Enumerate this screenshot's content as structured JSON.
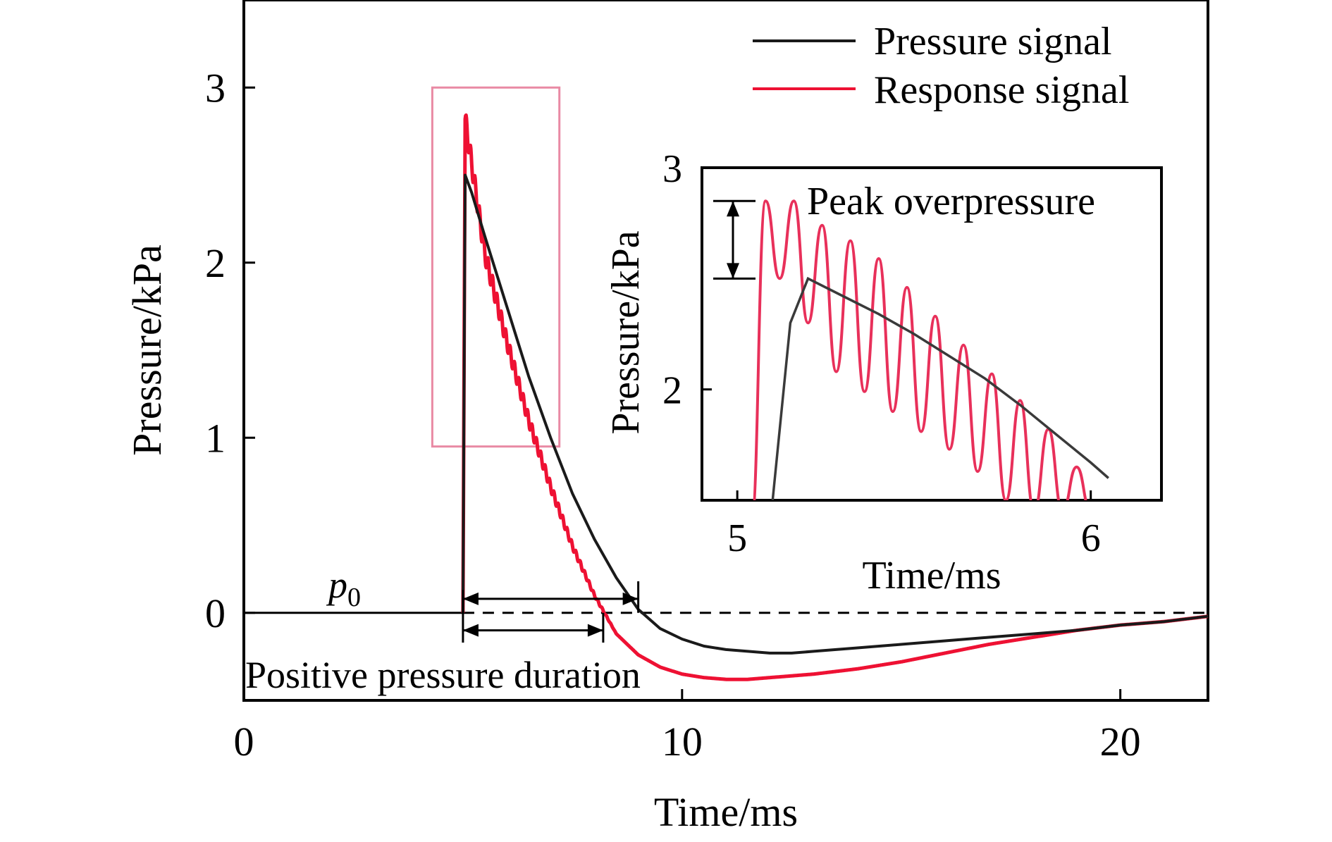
{
  "colors": {
    "pressure": "#1a1a1a",
    "response": "#ee1133",
    "inset_response": "#e8305a",
    "inset_pressure": "#3a3a3a",
    "highlight_box": "#e98aa4",
    "axis": "#000000"
  },
  "chart_data": [
    {
      "id": "main",
      "type": "line",
      "title": "",
      "xlabel": "Time/ms",
      "ylabel": "Pressure/kPa",
      "xlim": [
        0,
        22
      ],
      "ylim": [
        -0.5,
        3.5
      ],
      "xticks": [
        0,
        10,
        20
      ],
      "yticks": [
        0,
        1,
        2,
        3
      ],
      "grid": false,
      "legend": {
        "position": "top-right",
        "entries": [
          "Pressure signal",
          "Response signal"
        ]
      },
      "series": [
        {
          "name": "Pressure signal",
          "x": [
            0,
            5,
            5.05,
            5.2,
            5.5,
            6.0,
            6.5,
            7.0,
            7.5,
            8.0,
            8.5,
            9.0,
            9.5,
            10.0,
            10.5,
            11.0,
            11.5,
            12.0,
            12.5,
            13.0,
            14.0,
            15.0,
            16.0,
            17.0,
            18.0,
            19.0,
            20.0,
            21.0,
            22.0
          ],
          "y": [
            0,
            0,
            2.5,
            2.4,
            2.15,
            1.75,
            1.35,
            1.0,
            0.68,
            0.42,
            0.2,
            0.02,
            -0.09,
            -0.15,
            -0.19,
            -0.21,
            -0.22,
            -0.23,
            -0.23,
            -0.22,
            -0.2,
            -0.18,
            -0.16,
            -0.14,
            -0.12,
            -0.1,
            -0.07,
            -0.05,
            -0.02
          ]
        },
        {
          "name": "Response signal",
          "x": [
            5,
            5.05,
            5.5,
            6.0,
            6.5,
            7.0,
            7.5,
            8.0,
            8.5,
            9.0,
            9.5,
            10.0,
            10.5,
            11.0,
            11.5,
            12.0,
            13.0,
            14.0,
            15.0,
            16.0,
            17.0,
            18.0,
            19.0,
            20.0,
            21.0,
            22.0
          ],
          "y": [
            0,
            2.82,
            2.05,
            1.55,
            1.1,
            0.72,
            0.38,
            0.1,
            -0.12,
            -0.24,
            -0.31,
            -0.35,
            -0.37,
            -0.38,
            -0.38,
            -0.37,
            -0.35,
            -0.32,
            -0.28,
            -0.23,
            -0.18,
            -0.14,
            -0.1,
            -0.07,
            -0.05,
            -0.02
          ],
          "oscillation": {
            "amplitude": 0.06,
            "period_ms": 0.1,
            "decay_to_ms": 8.5
          }
        }
      ],
      "annotations": {
        "p0": {
          "text": "p",
          "subscript": "0",
          "x": 2.4,
          "y": 0.08
        },
        "duration_label": "Positive pressure duration",
        "pressure_duration": [
          5.0,
          9.0
        ],
        "response_duration": [
          5.0,
          8.2
        ],
        "zoom_box": {
          "x": [
            4.3,
            7.2
          ],
          "y": [
            0.95,
            3.0
          ]
        }
      }
    },
    {
      "id": "inset",
      "type": "line",
      "title": "",
      "xlabel": "Time/ms",
      "ylabel": "Pressure/kPa",
      "xlim": [
        4.9,
        6.2
      ],
      "ylim": [
        1.5,
        3.0
      ],
      "xticks": [
        5,
        6
      ],
      "yticks": [
        2,
        3
      ],
      "grid": false,
      "series": [
        {
          "name": "Pressure signal",
          "x": [
            5.1,
            5.15,
            5.2,
            5.3,
            5.4,
            5.5,
            5.6,
            5.7,
            5.8,
            5.9,
            6.0,
            6.05
          ],
          "y": [
            1.5,
            2.3,
            2.5,
            2.42,
            2.34,
            2.25,
            2.15,
            2.05,
            1.93,
            1.8,
            1.67,
            1.6
          ]
        },
        {
          "name": "Response signal",
          "x": [
            5.04,
            6.0
          ],
          "peaks_x": [
            5.08,
            5.16,
            5.24,
            5.32,
            5.4,
            5.48,
            5.56,
            5.64,
            5.72,
            5.8,
            5.88,
            5.96
          ],
          "peaks_y": [
            2.85,
            2.85,
            2.74,
            2.67,
            2.59,
            2.46,
            2.33,
            2.2,
            2.07,
            1.95,
            1.82,
            1.65
          ],
          "troughs_y": [
            2.5,
            2.3,
            2.08,
            1.99,
            1.9,
            1.81,
            1.73,
            1.63,
            1.5,
            1.45,
            1.45,
            1.45
          ]
        }
      ],
      "annotations": {
        "peak_label": "Peak overpressure",
        "peak_arrow": {
          "x": 5.0,
          "y_top": 2.85,
          "y_bottom": 2.5
        }
      }
    }
  ]
}
